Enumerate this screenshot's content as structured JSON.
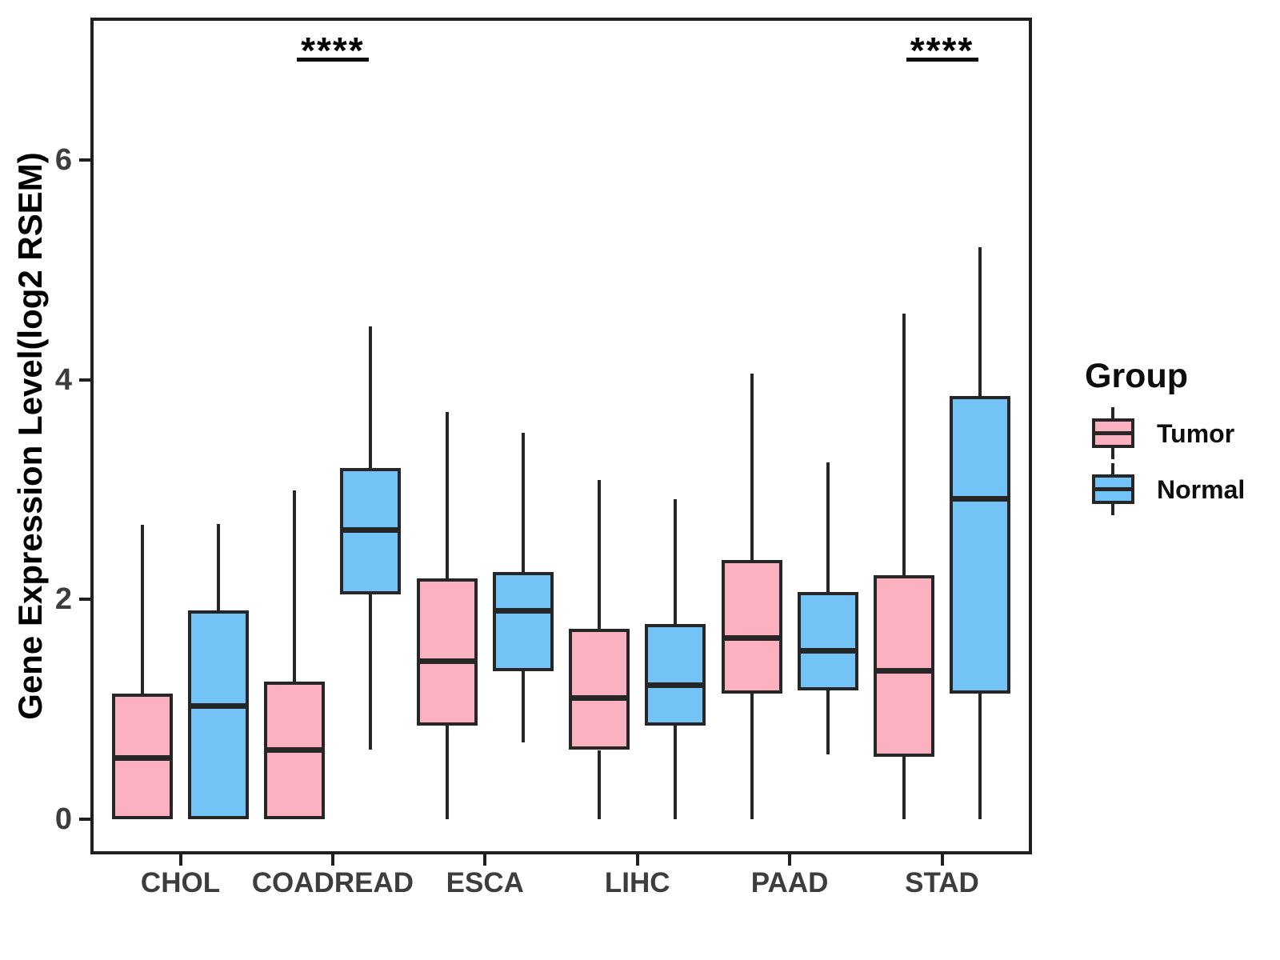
{
  "figure": {
    "y_axis_label": "Gene Expression Level(log2 RSEM)"
  },
  "legend": {
    "title": "Group",
    "items": [
      {
        "label": "Tumor"
      },
      {
        "label": "Normal"
      }
    ]
  },
  "chart_data": {
    "type": "boxplot",
    "title": "",
    "xlabel": "",
    "ylabel": "Gene Expression Level(log2 RSEM)",
    "ylim": [
      -0.35,
      7.3
    ],
    "y_ticks": [
      0,
      2,
      4,
      6
    ],
    "grid": false,
    "legend_position": "right",
    "legend_title": "Group",
    "categories": [
      "CHOL",
      "COADREAD",
      "ESCA",
      "LIHC",
      "PAAD",
      "STAD"
    ],
    "series": [
      {
        "name": "Tumor",
        "color": "#FBB1C0",
        "values": [
          {
            "low": 0,
            "q1": 0,
            "median": 0.56,
            "q3": 1.14,
            "high": 2.68
          },
          {
            "low": 0,
            "q1": 0,
            "median": 0.63,
            "q3": 1.25,
            "high": 2.99
          },
          {
            "low": 0,
            "q1": 0.85,
            "median": 1.44,
            "q3": 2.19,
            "high": 3.71
          },
          {
            "low": 0,
            "q1": 0.63,
            "median": 1.1,
            "q3": 1.73,
            "high": 3.09
          },
          {
            "low": 0,
            "q1": 1.14,
            "median": 1.65,
            "q3": 2.36,
            "high": 4.06
          },
          {
            "low": 0,
            "q1": 0.57,
            "median": 1.35,
            "q3": 2.22,
            "high": 4.6
          }
        ]
      },
      {
        "name": "Normal",
        "color": "#74C3F7",
        "values": [
          {
            "low": 0,
            "q1": 0,
            "median": 1.03,
            "q3": 1.9,
            "high": 2.69
          },
          {
            "low": 0.63,
            "q1": 2.05,
            "median": 2.63,
            "q3": 3.2,
            "high": 4.49
          },
          {
            "low": 0.7,
            "q1": 1.35,
            "median": 1.9,
            "q3": 2.25,
            "high": 3.52
          },
          {
            "low": 0,
            "q1": 0.85,
            "median": 1.22,
            "q3": 1.78,
            "high": 2.91
          },
          {
            "low": 0.59,
            "q1": 1.17,
            "median": 1.53,
            "q3": 2.07,
            "high": 3.25
          },
          {
            "low": 0,
            "q1": 1.14,
            "median": 2.92,
            "q3": 3.85,
            "high": 5.21
          }
        ]
      }
    ],
    "significance": [
      {
        "category": "COADREAD",
        "label": "****"
      },
      {
        "category": "STAD",
        "label": "****"
      }
    ]
  }
}
